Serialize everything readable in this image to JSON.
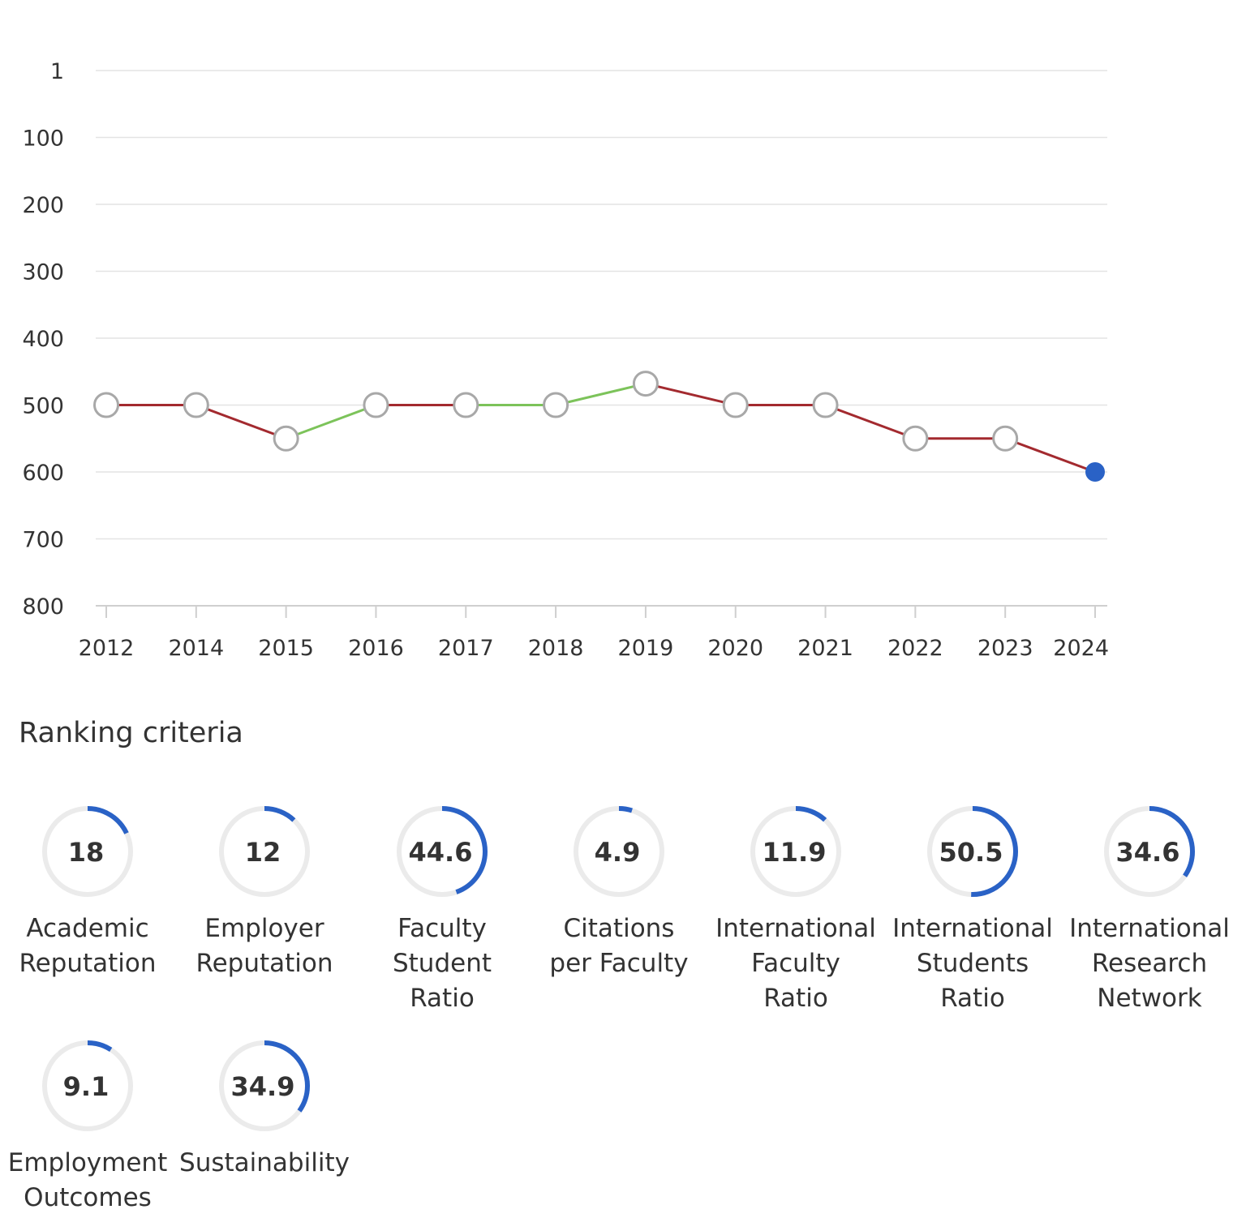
{
  "chart_data": {
    "type": "line",
    "title": "",
    "xlabel": "",
    "ylabel": "",
    "y_inverted": true,
    "y_ticks": [
      "1",
      "100",
      "200",
      "300",
      "400",
      "500",
      "600",
      "700",
      "800"
    ],
    "y_tick_values": [
      1,
      100,
      200,
      300,
      400,
      500,
      600,
      700,
      800
    ],
    "ylim": [
      1,
      800
    ],
    "x": [
      "2012",
      "2014",
      "2015",
      "2016",
      "2017",
      "2018",
      "2019",
      "2020",
      "2021",
      "2022",
      "2023",
      "2024"
    ],
    "series": [
      {
        "values": [
          500,
          500,
          550,
          500,
          500,
          500,
          468,
          500,
          500,
          550,
          550,
          600
        ]
      }
    ],
    "colors": {
      "improved": "#7cc35a",
      "declined": "#a32a2f",
      "unchanged": "#a32a2f",
      "current_point": "#2a62c6",
      "point_stroke": "#a8a8a8",
      "grid": "#e4e4e4"
    },
    "grid": true
  },
  "criteria": {
    "title": "Ranking criteria",
    "accent": "#2a62c6",
    "track": "#ebebeb",
    "items": [
      {
        "name": "academic-reputation",
        "value": 18,
        "label_lines": [
          "Academic",
          "Reputation"
        ]
      },
      {
        "name": "employer-reputation",
        "value": 12,
        "label_lines": [
          "Employer",
          "Reputation"
        ]
      },
      {
        "name": "faculty-student-ratio",
        "value": 44.6,
        "label_lines": [
          "Faculty",
          "Student",
          "Ratio"
        ]
      },
      {
        "name": "citations-per-faculty",
        "value": 4.9,
        "label_lines": [
          "Citations",
          "per Faculty"
        ]
      },
      {
        "name": "international-faculty-ratio",
        "value": 11.9,
        "label_lines": [
          "International",
          "Faculty",
          "Ratio"
        ]
      },
      {
        "name": "international-students-ratio",
        "value": 50.5,
        "label_lines": [
          "International",
          "Students",
          "Ratio"
        ]
      },
      {
        "name": "international-research-network",
        "value": 34.6,
        "label_lines": [
          "International",
          "Research",
          "Network"
        ]
      },
      {
        "name": "employment-outcomes",
        "value": 9.1,
        "label_lines": [
          "Employment",
          "Outcomes"
        ]
      },
      {
        "name": "sustainability",
        "value": 34.9,
        "label_lines": [
          "Sustainability"
        ]
      }
    ]
  }
}
